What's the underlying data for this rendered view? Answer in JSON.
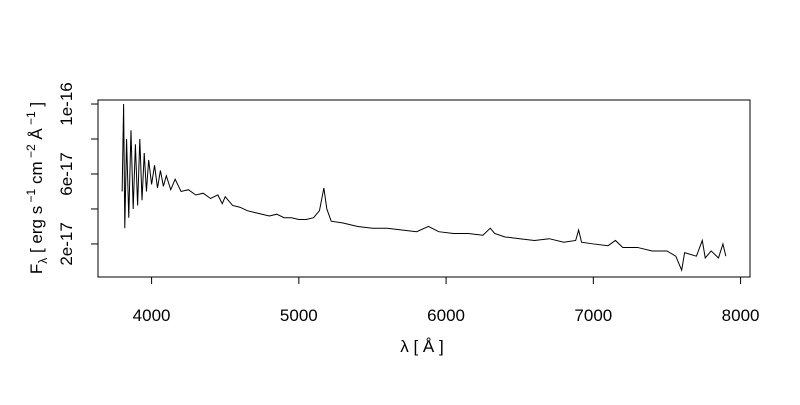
{
  "chart_data": {
    "type": "line",
    "xlabel": "λ [ Å ]",
    "ylabel_parts": [
      "F",
      "λ",
      " [ erg s",
      " −1",
      " cm",
      " −2",
      " Å",
      " −1",
      "  ]"
    ],
    "x": [
      3800,
      3810,
      3818,
      3830,
      3845,
      3860,
      3875,
      3890,
      3905,
      3920,
      3935,
      3950,
      3965,
      3980,
      4000,
      4020,
      4040,
      4060,
      4080,
      4100,
      4130,
      4160,
      4200,
      4250,
      4300,
      4350,
      4400,
      4450,
      4480,
      4500,
      4550,
      4600,
      4650,
      4700,
      4750,
      4800,
      4850,
      4900,
      4950,
      5000,
      5050,
      5100,
      5140,
      5170,
      5190,
      5220,
      5300,
      5400,
      5500,
      5600,
      5700,
      5800,
      5880,
      5950,
      6050,
      6150,
      6250,
      6300,
      6330,
      6400,
      6500,
      6600,
      6700,
      6800,
      6880,
      6900,
      6920,
      7000,
      7100,
      7150,
      7200,
      7300,
      7400,
      7500,
      7560,
      7600,
      7620,
      7700,
      7740,
      7760,
      7800,
      7850,
      7880,
      7900
    ],
    "series": [
      {
        "color": "#000000",
        "values": [
          5e-17,
          1e-16,
          2.9e-17,
          8e-17,
          3.5e-17,
          8.5e-17,
          4e-17,
          7.7e-17,
          4.2e-17,
          8e-17,
          4.5e-17,
          7.2e-17,
          5e-17,
          6.8e-17,
          5.4e-17,
          6.5e-17,
          5.2e-17,
          6.2e-17,
          5.3e-17,
          5.9e-17,
          5.1e-17,
          5.7e-17,
          5e-17,
          5.1e-17,
          4.8e-17,
          4.9e-17,
          4.6e-17,
          4.8e-17,
          4.3e-17,
          4.7e-17,
          4.2e-17,
          4.1e-17,
          3.9e-17,
          3.8e-17,
          3.7e-17,
          3.6e-17,
          3.7e-17,
          3.5e-17,
          3.5e-17,
          3.4e-17,
          3.4e-17,
          3.5e-17,
          3.9e-17,
          5.2e-17,
          4e-17,
          3.3e-17,
          3.2e-17,
          3e-17,
          2.9e-17,
          2.9e-17,
          2.8e-17,
          2.7e-17,
          3e-17,
          2.7e-17,
          2.6e-17,
          2.6e-17,
          2.5e-17,
          2.9e-17,
          2.6e-17,
          2.4e-17,
          2.3e-17,
          2.2e-17,
          2.3e-17,
          2.1e-17,
          2.2e-17,
          2.8e-17,
          2.1e-17,
          2e-17,
          1.9e-17,
          2.2e-17,
          1.8e-17,
          1.8e-17,
          1.6e-17,
          1.6e-17,
          1.3e-17,
          5e-18,
          1.5e-17,
          1.3e-17,
          2.2e-17,
          1.2e-17,
          1.6e-17,
          1.2e-17,
          2e-17,
          1.3e-17
        ]
      }
    ],
    "xlim": [
      3636,
      8064
    ],
    "xticks": [
      4000,
      5000,
      6000,
      7000,
      8000
    ],
    "ylim": [
      1.1e-18,
      1.023e-16
    ],
    "yticks": [
      2e-17,
      {
        "value": 4e-17,
        "label": null
      },
      6e-17,
      {
        "value": 8e-17,
        "label": null
      },
      1e-16
    ]
  }
}
